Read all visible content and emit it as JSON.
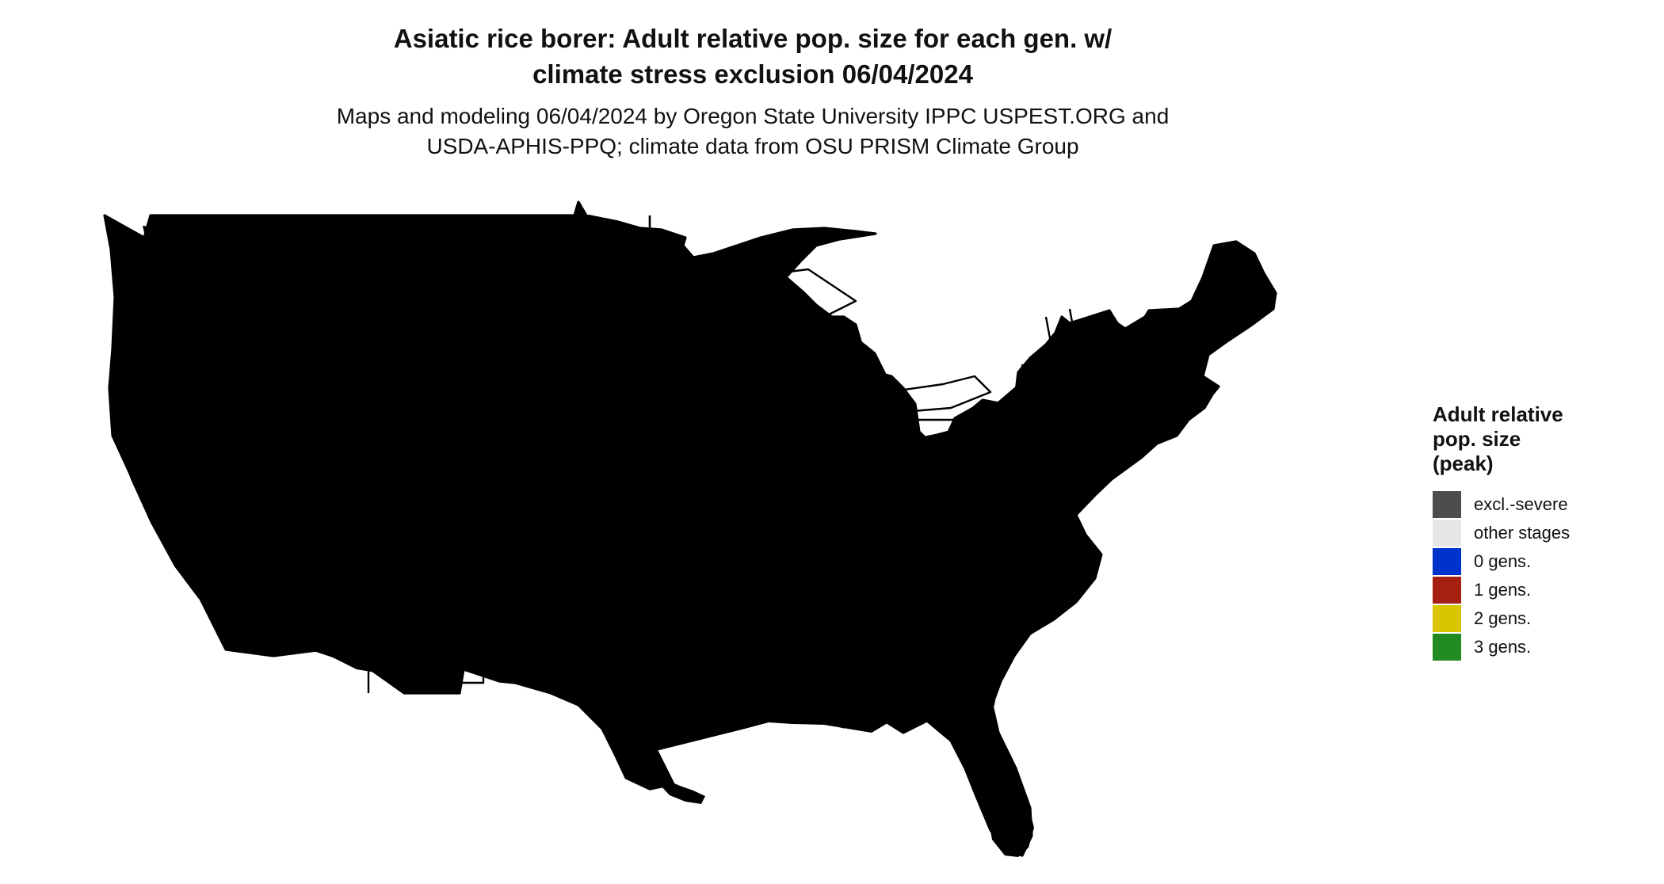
{
  "title": {
    "line1": "Asiatic rice borer: Adult relative pop. size for each gen. w/",
    "line2": "climate stress exclusion 06/04/2024"
  },
  "subtitle": {
    "line1": "Maps and modeling 06/04/2024 by Oregon State University IPPC USPEST.ORG and",
    "line2": "USDA-APHIS-PPQ; climate data from OSU PRISM Climate Group"
  },
  "legend": {
    "title_lines": [
      "Adult relative",
      "pop. size",
      "(peak)"
    ],
    "items": [
      {
        "label": "excl.-severe",
        "color": "#4d4d4d"
      },
      {
        "label": "other stages",
        "color": "#e6e6e6"
      },
      {
        "label": "0 gens.",
        "color": "#0033cc"
      },
      {
        "label": "1 gens.",
        "color": "#a6200f"
      },
      {
        "label": "2 gens.",
        "color": "#d9c400"
      },
      {
        "label": "3 gens.",
        "color": "#238b23"
      }
    ]
  },
  "map_colors": {
    "land": "#e6e6e6",
    "blue_light": "#00bfff",
    "blue_mid": "#1a8cff",
    "blue_dark": "#0066e6",
    "red_light": "#ff5a1a",
    "red_mid": "#f03c0a",
    "red_dark": "#c8320a",
    "yellow": "#f2f20a",
    "border": "#000000"
  }
}
